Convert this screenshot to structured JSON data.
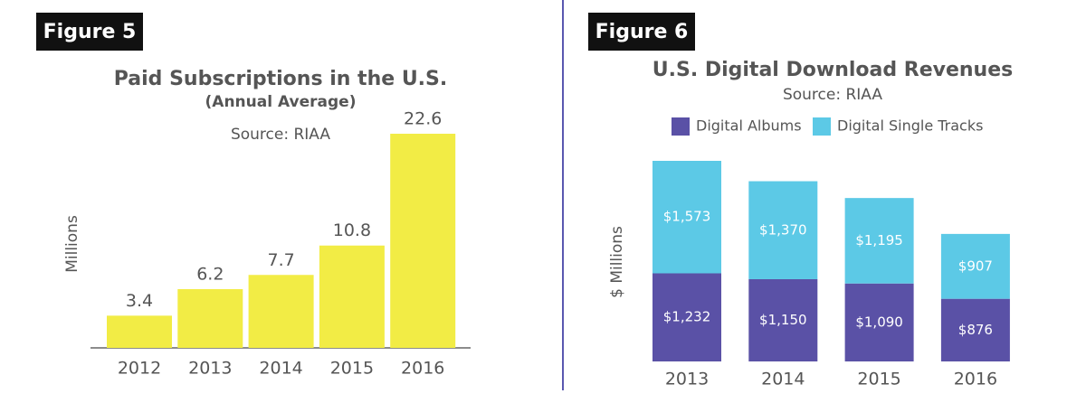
{
  "chart_data": [
    {
      "type": "bar",
      "figure_label": "Figure 5",
      "title": "Paid Subscriptions in the U.S.",
      "subtitle": "(Annual Average)",
      "source": "Source: RIAA",
      "y_label": "Millions",
      "categories": [
        "2012",
        "2013",
        "2014",
        "2015",
        "2016"
      ],
      "values": [
        3.4,
        6.2,
        7.7,
        10.8,
        22.6
      ],
      "color": "#f2ec45"
    },
    {
      "type": "stacked_bar",
      "figure_label": "Figure 6",
      "title": "U.S. Digital Download Revenues",
      "source": "Source: RIAA",
      "y_label": "$ Millions",
      "categories": [
        "2013",
        "2014",
        "2015",
        "2016"
      ],
      "series": [
        {
          "name": "Digital Albums",
          "color": "#5a51a6",
          "values": [
            1232,
            1150,
            1090,
            876
          ],
          "value_labels": [
            "$1,232",
            "$1,150",
            "$1,090",
            "$876"
          ]
        },
        {
          "name": "Digital Single Tracks",
          "color": "#5cc9e6",
          "values": [
            1573,
            1370,
            1195,
            907
          ],
          "value_labels": [
            "$1,573",
            "$1,370",
            "$1,195",
            "$907"
          ]
        }
      ]
    }
  ]
}
